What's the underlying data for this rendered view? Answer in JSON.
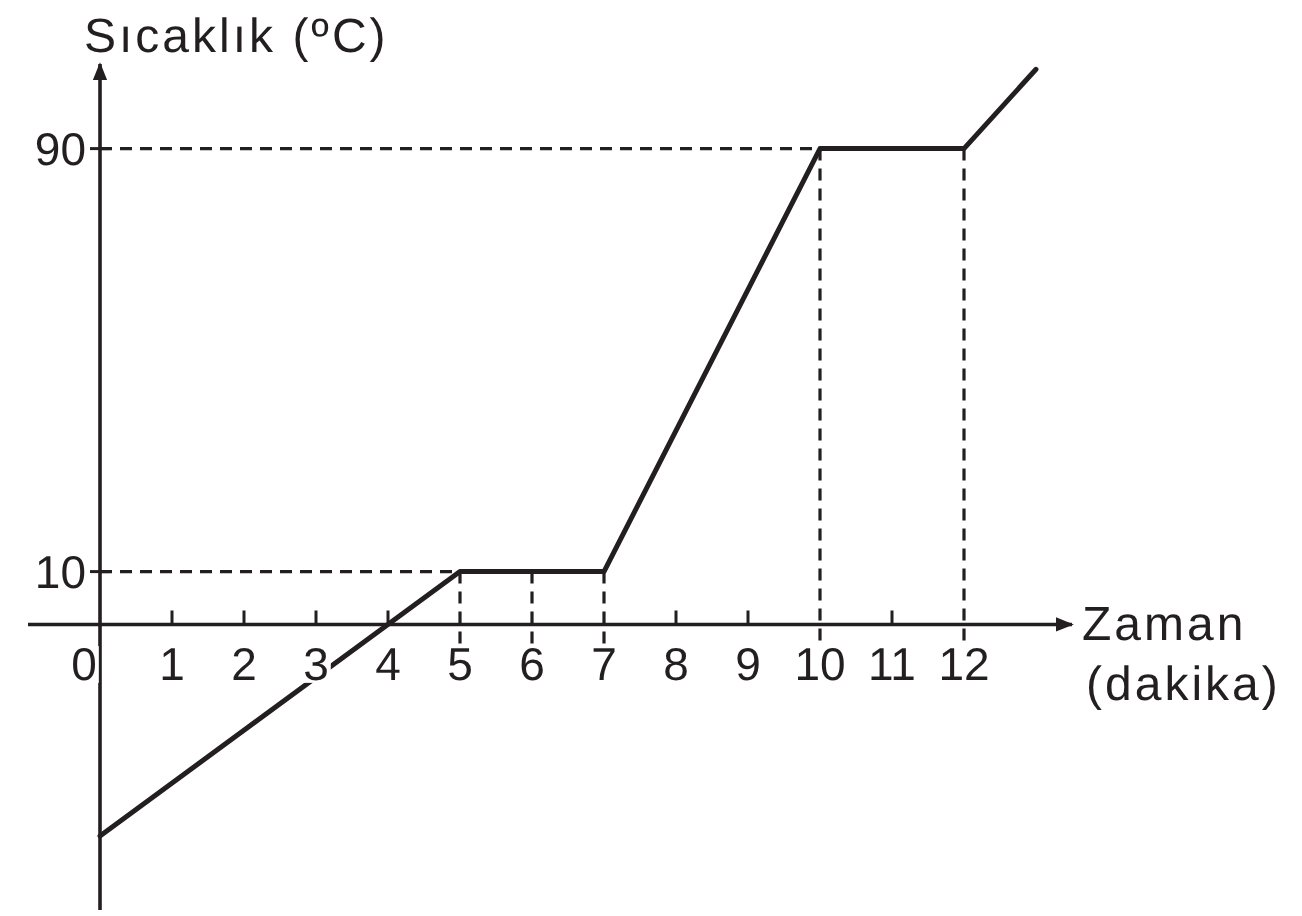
{
  "chart_data": {
    "type": "line",
    "xlabel": "Zaman (dakika)",
    "ylabel": "Sıcaklık (ºC)",
    "x": [
      0,
      5,
      7,
      10,
      12,
      13
    ],
    "values": [
      -40,
      10,
      10,
      90,
      90,
      105
    ],
    "color": "#231f20",
    "line_style": "solid",
    "xlim": [
      -1,
      13.5
    ],
    "ylim": [
      -54,
      106
    ],
    "xticks": [
      0,
      1,
      2,
      3,
      4,
      5,
      6,
      7,
      8,
      9,
      10,
      11,
      12
    ],
    "yticks": [
      10,
      90
    ],
    "ref_lines": [
      {
        "axis": "y",
        "value": 90,
        "line_style": "dashed"
      },
      {
        "axis": "x",
        "value": 10,
        "line_style": "dashed"
      },
      {
        "axis": "x",
        "value": 12,
        "line_style": "dashed"
      },
      {
        "axis": "y",
        "value": 10,
        "line_style": "dashed"
      },
      {
        "axis": "x",
        "value": 5,
        "line_style": "dashed"
      },
      {
        "axis": "x",
        "value": 6,
        "line_style": "dashed"
      },
      {
        "axis": "x",
        "value": 7,
        "line_style": "dashed"
      }
    ]
  }
}
